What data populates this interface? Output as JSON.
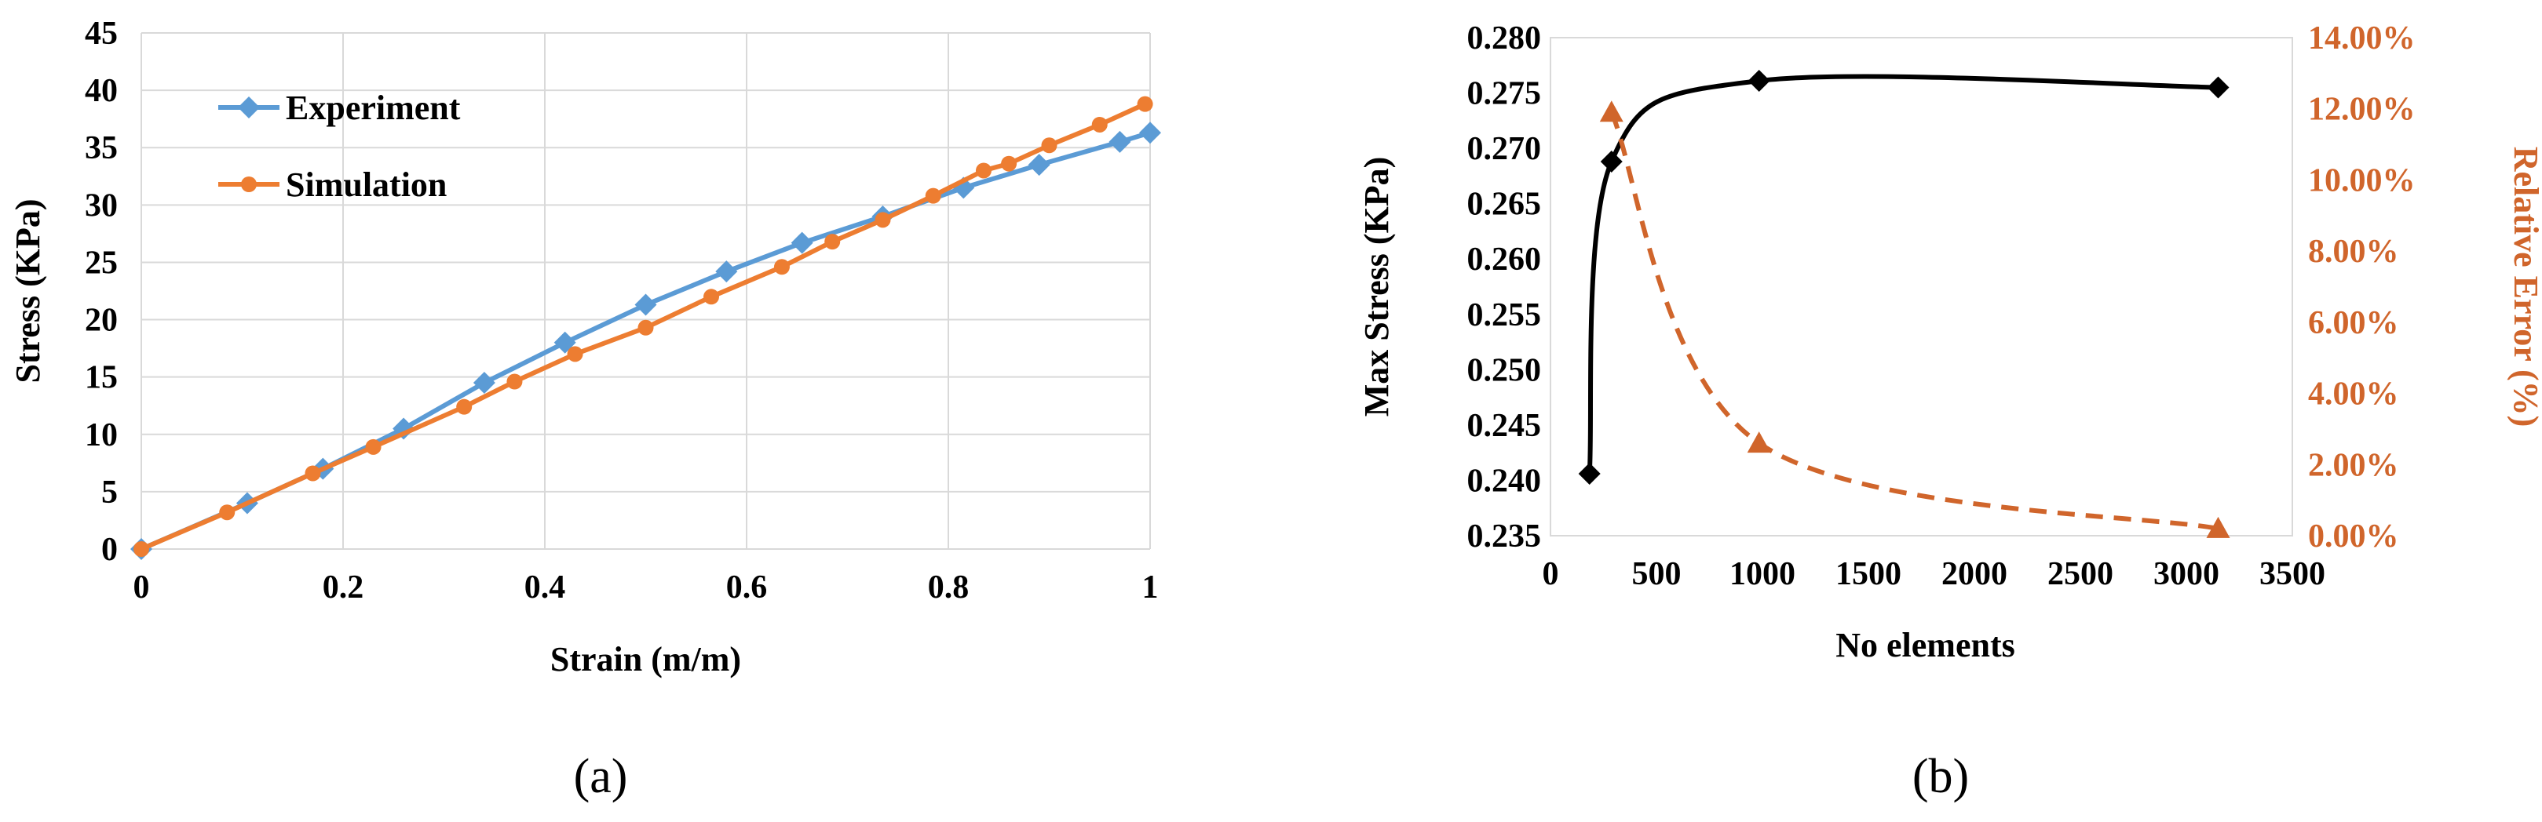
{
  "chart_data": [
    {
      "type": "line",
      "caption": "(a)",
      "xlabel": "Strain (m/m)",
      "ylabel": "Stress (KPa)",
      "xlim": [
        0,
        1
      ],
      "ylim": [
        0,
        45
      ],
      "xticks": [
        0,
        0.2,
        0.4,
        0.6,
        0.8,
        1
      ],
      "xtick_labels": [
        "0",
        "0.2",
        "0.4",
        "0.6",
        "0.8",
        "1"
      ],
      "yticks": [
        0,
        5,
        10,
        15,
        20,
        25,
        30,
        35,
        40,
        45
      ],
      "ytick_labels": [
        "0",
        "5",
        "10",
        "15",
        "20",
        "25",
        "30",
        "35",
        "40",
        "45"
      ],
      "grid": true,
      "legend": "top-left",
      "series": [
        {
          "name": "Experiment",
          "color": "#5B9BD5",
          "marker": "diamond",
          "x": [
            0,
            0.105,
            0.18,
            0.26,
            0.34,
            0.42,
            0.5,
            0.58,
            0.655,
            0.735,
            0.815,
            0.89,
            0.97,
            1.0
          ],
          "y": [
            0,
            4.0,
            7.0,
            10.5,
            14.5,
            18.0,
            21.3,
            24.2,
            26.7,
            29.0,
            31.5,
            33.5,
            35.5,
            36.3
          ]
        },
        {
          "name": "Simulation",
          "color": "#ED7D31",
          "marker": "circle",
          "x": [
            0,
            0.085,
            0.17,
            0.23,
            0.32,
            0.37,
            0.43,
            0.5,
            0.565,
            0.635,
            0.685,
            0.735,
            0.785,
            0.835,
            0.86,
            0.9,
            0.95,
            0.995
          ],
          "y": [
            0,
            3.2,
            6.6,
            8.9,
            12.4,
            14.6,
            17.0,
            19.3,
            22.0,
            24.6,
            26.8,
            28.7,
            30.8,
            33.0,
            33.6,
            35.2,
            37.0,
            38.8
          ]
        }
      ]
    },
    {
      "type": "line",
      "caption": "(b)",
      "xlabel": "No elements",
      "ylabel": "Max Stress (KPa)",
      "y2label": "Relative Error (%)",
      "xlim": [
        0,
        3500
      ],
      "ylim": [
        0.235,
        0.28
      ],
      "y2lim": [
        0,
        14
      ],
      "xticks": [
        0,
        500,
        1000,
        1500,
        2000,
        2500,
        3000,
        3500
      ],
      "xtick_labels": [
        "0",
        "500",
        "1000",
        "1500",
        "2000",
        "2500",
        "3000",
        "3500"
      ],
      "yticks": [
        0.235,
        0.24,
        0.245,
        0.25,
        0.255,
        0.26,
        0.265,
        0.27,
        0.275,
        0.28
      ],
      "ytick_labels": [
        "0.235",
        "0.240",
        "0.245",
        "0.250",
        "0.255",
        "0.260",
        "0.265",
        "0.270",
        "0.275",
        "0.280"
      ],
      "y2ticks": [
        0,
        2,
        4,
        6,
        8,
        10,
        12,
        14
      ],
      "y2tick_labels": [
        "0.00%",
        "2.00%",
        "4.00%",
        "6.00%",
        "8.00%",
        "10.00%",
        "12.00%",
        "14.00%"
      ],
      "grid": false,
      "series": [
        {
          "axis": "left",
          "color": "#000000",
          "marker": "diamond",
          "style": "solid",
          "x": [
            184,
            288,
            984,
            3150
          ],
          "y": [
            0.2406,
            0.2688,
            0.2761,
            0.2755
          ]
        },
        {
          "axis": "right",
          "color": "#D0652B",
          "marker": "triangle",
          "style": "dashed",
          "x": [
            288,
            984,
            3150
          ],
          "y": [
            11.9,
            2.6,
            0.2
          ]
        }
      ]
    }
  ]
}
